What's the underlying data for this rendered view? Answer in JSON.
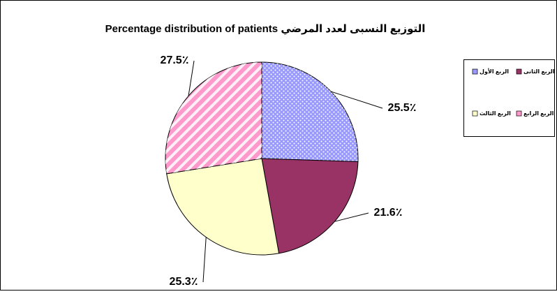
{
  "chart_data": {
    "type": "pie",
    "title": "Percentage distribution of patients التوزيع النسبى لعدد  المرضي",
    "categories": [
      "الربع الأول",
      "الربع الثانى",
      "الربع الثالث",
      "الربع الرابع"
    ],
    "values": [
      25.5,
      21.6,
      25.3,
      27.5
    ],
    "value_labels": [
      "25.5٪",
      "21.6٪",
      "25.3٪",
      "27.5٪"
    ],
    "colors": [
      "#9999ff",
      "#993366",
      "#ffffcc",
      "#ff99cc"
    ],
    "legend": "right"
  }
}
